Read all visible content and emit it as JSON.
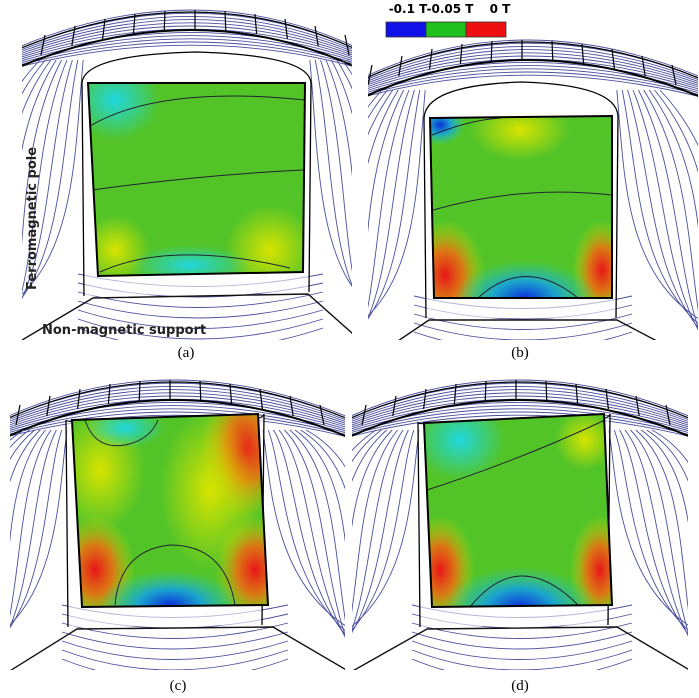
{
  "colorbar": {
    "labels": [
      "-0.1 T",
      "-0.05 T",
      "0 T"
    ]
  },
  "annotations": {
    "pole": "Ferromagnetic pole",
    "support": "Non-magnetic support"
  },
  "panels": [
    {
      "label": "(a)"
    },
    {
      "label": "(b)"
    },
    {
      "label": "(c)"
    },
    {
      "label": "(d)"
    }
  ]
}
